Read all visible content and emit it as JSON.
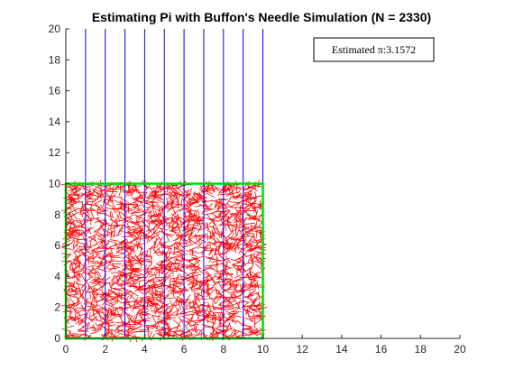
{
  "chart_data": {
    "type": "line",
    "title": "Estimating Pi with Buffon's Needle Simulation (N = 2330)",
    "xlabel": "",
    "ylabel": "",
    "xlim": [
      0,
      20
    ],
    "ylim": [
      0,
      20
    ],
    "xticks": [
      "0",
      "2",
      "4",
      "6",
      "8",
      "10",
      "12",
      "14",
      "16",
      "18",
      "20"
    ],
    "yticks": [
      "0",
      "2",
      "4",
      "6",
      "8",
      "10",
      "12",
      "14",
      "16",
      "18",
      "20"
    ],
    "grid": false,
    "legend": "none",
    "annotation": {
      "text": "Estimated π:3.1572",
      "placement": "top-right"
    },
    "vertical_lines": {
      "x": [
        1,
        2,
        3,
        4,
        5,
        6,
        7,
        8,
        9,
        10
      ],
      "y_range": [
        0,
        20
      ],
      "color": "#0000ff"
    },
    "boundary_box": {
      "x_range": [
        0,
        10
      ],
      "y_range": [
        0,
        10
      ],
      "color": "#00dd00"
    },
    "needles": {
      "count": 2330,
      "length": 0.5,
      "region_x": [
        0,
        10
      ],
      "region_y": [
        0,
        10
      ],
      "color": "#ff0000"
    }
  }
}
